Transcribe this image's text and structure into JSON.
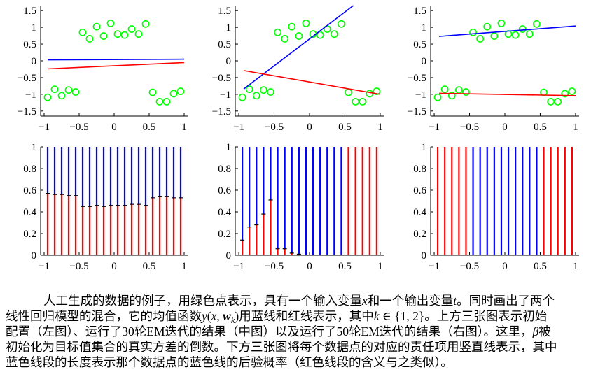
{
  "chart_data": [
    {
      "type": "scatter",
      "xlim": [
        -1.05,
        1.05
      ],
      "ylim": [
        -1.65,
        1.65
      ],
      "grid": false,
      "xticks": [
        -1,
        -0.5,
        0,
        0.5,
        1
      ],
      "xtick_labels": [
        "−1",
        "−0.5",
        "0",
        "0.5",
        "1"
      ],
      "yticks": [
        1.5,
        1,
        0.5,
        0,
        -0.5,
        -1,
        -1.5
      ],
      "ytick_labels": [
        "1.5",
        "1",
        "0.5",
        "0",
        "−0.5",
        "−1",
        "−1.5"
      ],
      "points": {
        "color": "#00ff00",
        "marker": "circle",
        "x": [
          -0.95,
          -0.85,
          -0.75,
          -0.65,
          -0.55,
          -0.45,
          -0.35,
          -0.25,
          -0.15,
          -0.05,
          0.05,
          0.15,
          0.25,
          0.35,
          0.45,
          0.55,
          0.65,
          0.75,
          0.85,
          0.95
        ],
        "y": [
          -1.09,
          -0.85,
          -1.04,
          -0.87,
          -0.93,
          0.85,
          0.66,
          1.02,
          0.74,
          1.12,
          0.8,
          0.77,
          0.95,
          0.8,
          1.1,
          -0.94,
          -1.22,
          -1.22,
          -0.98,
          -0.91
        ]
      },
      "lines": [
        {
          "color": "#0000ff",
          "x": [
            -0.95,
            1
          ],
          "y": [
            0.03,
            0.05
          ]
        },
        {
          "color": "#ff0000",
          "x": [
            -0.95,
            1
          ],
          "y": [
            -0.24,
            -0.05
          ]
        }
      ]
    },
    {
      "type": "scatter",
      "xlim": [
        -1.05,
        1.05
      ],
      "ylim": [
        -1.65,
        1.65
      ],
      "grid": false,
      "xticks": [
        -1,
        -0.5,
        0,
        0.5,
        1
      ],
      "xtick_labels": [
        "−1",
        "−0.5",
        "0",
        "0.5",
        "1"
      ],
      "yticks": [
        1.5,
        1,
        0.5,
        0,
        -0.5,
        -1,
        -1.5
      ],
      "ytick_labels": [
        "1.5",
        "1",
        "0.5",
        "0",
        "−0.5",
        "−1",
        "−1.5"
      ],
      "points": {
        "color": "#00ff00",
        "marker": "circle",
        "x": [
          -0.95,
          -0.85,
          -0.75,
          -0.65,
          -0.55,
          -0.45,
          -0.35,
          -0.25,
          -0.15,
          -0.05,
          0.05,
          0.15,
          0.25,
          0.35,
          0.45,
          0.55,
          0.65,
          0.75,
          0.85,
          0.95
        ],
        "y": [
          -1.09,
          -0.85,
          -1.04,
          -0.87,
          -0.93,
          0.85,
          0.66,
          1.02,
          0.74,
          1.12,
          0.8,
          0.77,
          0.95,
          0.8,
          1.1,
          -0.94,
          -1.22,
          -1.22,
          -0.98,
          -0.91
        ]
      },
      "lines": [
        {
          "color": "#0000ff",
          "x": [
            -0.93,
            0.62
          ],
          "y": [
            -0.84,
            1.65
          ]
        },
        {
          "color": "#ff0000",
          "x": [
            -0.93,
            1
          ],
          "y": [
            -0.29,
            -1.0
          ]
        }
      ]
    },
    {
      "type": "scatter",
      "xlim": [
        -1.05,
        1.05
      ],
      "ylim": [
        -1.65,
        1.65
      ],
      "grid": false,
      "xticks": [
        -1,
        -0.5,
        0,
        0.5,
        1
      ],
      "xtick_labels": [
        "−1",
        "−0.5",
        "0",
        "0.5",
        "1"
      ],
      "yticks": [
        1.5,
        1,
        0.5,
        0,
        -0.5,
        -1,
        -1.5
      ],
      "ytick_labels": [
        "1.5",
        "1",
        "0.5",
        "0",
        "−0.5",
        "−1",
        "−1.5"
      ],
      "points": {
        "color": "#00ff00",
        "marker": "circle",
        "x": [
          -0.95,
          -0.85,
          -0.75,
          -0.65,
          -0.55,
          -0.45,
          -0.35,
          -0.25,
          -0.15,
          -0.05,
          0.05,
          0.15,
          0.25,
          0.35,
          0.45,
          0.55,
          0.65,
          0.75,
          0.85,
          0.95
        ],
        "y": [
          -1.09,
          -0.85,
          -1.04,
          -0.87,
          -0.93,
          0.85,
          0.66,
          1.02,
          0.74,
          1.12,
          0.8,
          0.77,
          0.95,
          0.8,
          1.1,
          -0.94,
          -1.22,
          -1.22,
          -0.98,
          -0.91
        ]
      },
      "lines": [
        {
          "color": "#0000ff",
          "x": [
            -0.93,
            1
          ],
          "y": [
            0.73,
            1.04
          ]
        },
        {
          "color": "#ff0000",
          "x": [
            -0.93,
            1
          ],
          "y": [
            -0.97,
            -1.04
          ]
        }
      ]
    },
    {
      "type": "bar",
      "stacked": true,
      "xlim": [
        -1.05,
        1.05
      ],
      "ylim": [
        0,
        1
      ],
      "grid": false,
      "xticks": [
        -1,
        -0.5,
        0,
        0.5,
        1
      ],
      "xtick_labels": [
        "−1",
        "−0.5",
        "0",
        "0.5",
        "1"
      ],
      "yticks": [
        1,
        0.8,
        0.6,
        0.4,
        0.2,
        0
      ],
      "ytick_labels": [
        "1",
        "0.8",
        "0.6",
        "0.4",
        "0.2",
        "0"
      ],
      "x": [
        -0.95,
        -0.85,
        -0.75,
        -0.65,
        -0.55,
        -0.45,
        -0.35,
        -0.25,
        -0.15,
        -0.05,
        0.05,
        0.15,
        0.25,
        0.35,
        0.45,
        0.55,
        0.65,
        0.75,
        0.85,
        0.95
      ],
      "series": [
        {
          "color": "#ff0000",
          "values": [
            0.57,
            0.56,
            0.56,
            0.55,
            0.55,
            0.45,
            0.45,
            0.46,
            0.45,
            0.46,
            0.46,
            0.46,
            0.47,
            0.47,
            0.46,
            0.53,
            0.54,
            0.54,
            0.53,
            0.53
          ]
        },
        {
          "color": "#0000ff",
          "values": [
            0.43,
            0.44,
            0.44,
            0.45,
            0.45,
            0.55,
            0.55,
            0.54,
            0.55,
            0.54,
            0.54,
            0.54,
            0.53,
            0.53,
            0.54,
            0.47,
            0.46,
            0.46,
            0.47,
            0.47
          ]
        }
      ]
    },
    {
      "type": "bar",
      "stacked": true,
      "xlim": [
        -1.05,
        1.05
      ],
      "ylim": [
        0,
        1
      ],
      "grid": false,
      "xticks": [
        -1,
        -0.5,
        0,
        0.5,
        1
      ],
      "xtick_labels": [
        "−1",
        "−0.5",
        "0",
        "0.5",
        "1"
      ],
      "yticks": [
        1,
        0.8,
        0.6,
        0.4,
        0.2,
        0
      ],
      "ytick_labels": [
        "1",
        "0.8",
        "0.6",
        "0.4",
        "0.2",
        "0"
      ],
      "x": [
        -0.95,
        -0.85,
        -0.75,
        -0.65,
        -0.55,
        -0.45,
        -0.35,
        -0.25,
        -0.15,
        -0.05,
        0.05,
        0.15,
        0.25,
        0.35,
        0.45,
        0.55,
        0.65,
        0.75,
        0.85,
        0.95
      ],
      "series": [
        {
          "color": "#ff0000",
          "values": [
            0.14,
            0.26,
            0.28,
            0.38,
            0.51,
            0.06,
            0.06,
            0.02,
            0.01,
            0,
            0,
            0,
            0,
            0,
            0,
            1,
            1,
            1,
            1,
            1
          ]
        },
        {
          "color": "#0000ff",
          "values": [
            0.86,
            0.74,
            0.72,
            0.62,
            0.49,
            0.94,
            0.94,
            0.98,
            0.99,
            1,
            1,
            1,
            1,
            1,
            1,
            0,
            0,
            0,
            0,
            0
          ]
        }
      ]
    },
    {
      "type": "bar",
      "stacked": true,
      "xlim": [
        -1.05,
        1.05
      ],
      "ylim": [
        0,
        1
      ],
      "grid": false,
      "xticks": [
        -1,
        -0.5,
        0,
        0.5,
        1
      ],
      "xtick_labels": [
        "−1",
        "−0.5",
        "0",
        "0.5",
        "1"
      ],
      "yticks": [
        1,
        0.8,
        0.6,
        0.4,
        0.2,
        0
      ],
      "ytick_labels": [
        "1",
        "0.8",
        "0.6",
        "0.4",
        "0.2",
        "0"
      ],
      "x": [
        -0.95,
        -0.85,
        -0.75,
        -0.65,
        -0.55,
        -0.45,
        -0.35,
        -0.25,
        -0.15,
        -0.05,
        0.05,
        0.15,
        0.25,
        0.35,
        0.45,
        0.55,
        0.65,
        0.75,
        0.85,
        0.95
      ],
      "series": [
        {
          "color": "#ff0000",
          "values": [
            1,
            1,
            1,
            1,
            1,
            0,
            0,
            0,
            0,
            0,
            0,
            0,
            0,
            0,
            0,
            1,
            1,
            1,
            1,
            1
          ]
        },
        {
          "color": "#0000ff",
          "values": [
            0,
            0,
            0,
            0,
            0,
            1,
            1,
            1,
            1,
            1,
            1,
            1,
            1,
            1,
            1,
            0,
            0,
            0,
            0,
            0
          ]
        }
      ]
    }
  ],
  "caption": {
    "lines": [
      [
        {
          "t": "人工生成的数据的例子，用绿色点表示，具有一个输入变量"
        },
        {
          "t": "x",
          "s": "i"
        },
        {
          "t": "和一个输出变量"
        },
        {
          "t": "t",
          "s": "i"
        },
        {
          "t": "。同时画出了两个"
        }
      ],
      [
        {
          "t": "线性回归模型的混合，它的均值函数"
        },
        {
          "t": "y",
          "s": "i"
        },
        {
          "t": "("
        },
        {
          "t": "x",
          "s": "i"
        },
        {
          "t": ", "
        },
        {
          "t": "w",
          "s": "bi"
        },
        {
          "t": "k",
          "s": "sub"
        },
        {
          "t": ")"
        },
        {
          "t": "用蓝线和红线表示，其中"
        },
        {
          "t": "k",
          "s": "i"
        },
        {
          "t": " ∈ {1, 2}"
        },
        {
          "t": "。上方三张图表示初始"
        }
      ],
      [
        {
          "t": "配置（左图）、运行了30轮EM迭代的结果（中图）以及运行了50轮EM迭代的结果（右图）。这里，"
        },
        {
          "t": "β",
          "s": "i"
        },
        {
          "t": "被"
        }
      ],
      [
        {
          "t": "初始化为目标值集合的真实方差的倒数。下方三张图将每个数据点的对应的责任项用竖直线表示，其中"
        }
      ],
      [
        {
          "t": "蓝色线段的长度表示那个数据点的蓝色线的后验概率（红色线段的含义与之类似）。"
        }
      ]
    ]
  }
}
